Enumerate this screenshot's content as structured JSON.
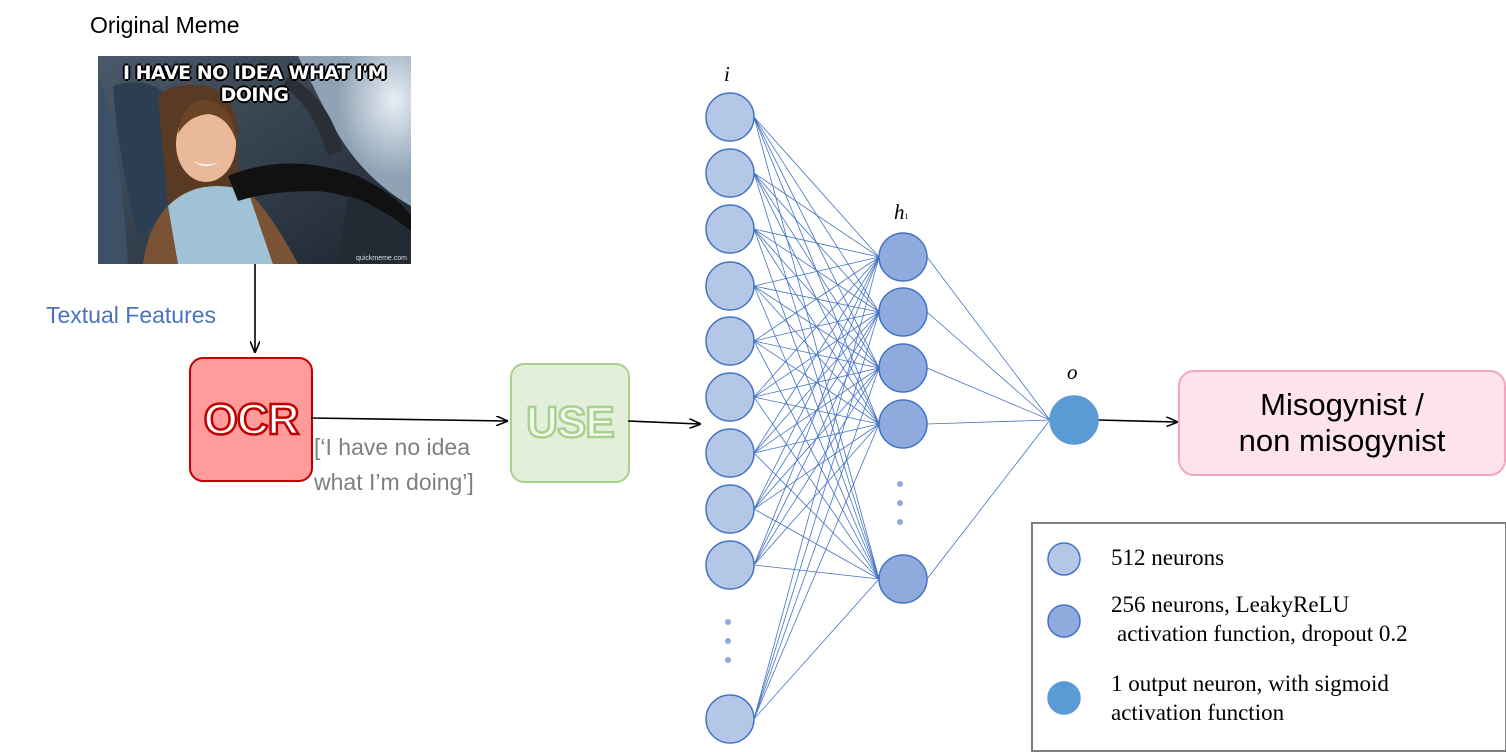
{
  "title": "Original Meme",
  "meme": {
    "caption": "I HAVE NO IDEA WHAT I'M DOING",
    "credit": "quickmeme.com"
  },
  "textual_features_label": "Textual Features",
  "ocr_label": "OCR",
  "use_label": "USE",
  "extracted_text": {
    "line1": "[‘I have no idea",
    "line2": "what I’m doing’]"
  },
  "layers": {
    "input": "i",
    "hidden": "h",
    "hidden_sub": "1",
    "output": "o"
  },
  "output_label": {
    "line1": "Misogynist /",
    "line2": "non misogynist"
  },
  "legend": {
    "item1": "512 neurons",
    "item2_line1": "256 neurons, LeakyReLU",
    "item2_line2": "activation function, dropout 0.2",
    "item3_line1": "1 output neuron, with sigmoid",
    "item3_line2": "activation function"
  },
  "colors": {
    "input_neuron": "#b4c7e7",
    "hidden_neuron": "#8faadc",
    "output_neuron": "#5b9bd5",
    "neuron_stroke": "#4472c4",
    "edge": "#4472c4"
  }
}
